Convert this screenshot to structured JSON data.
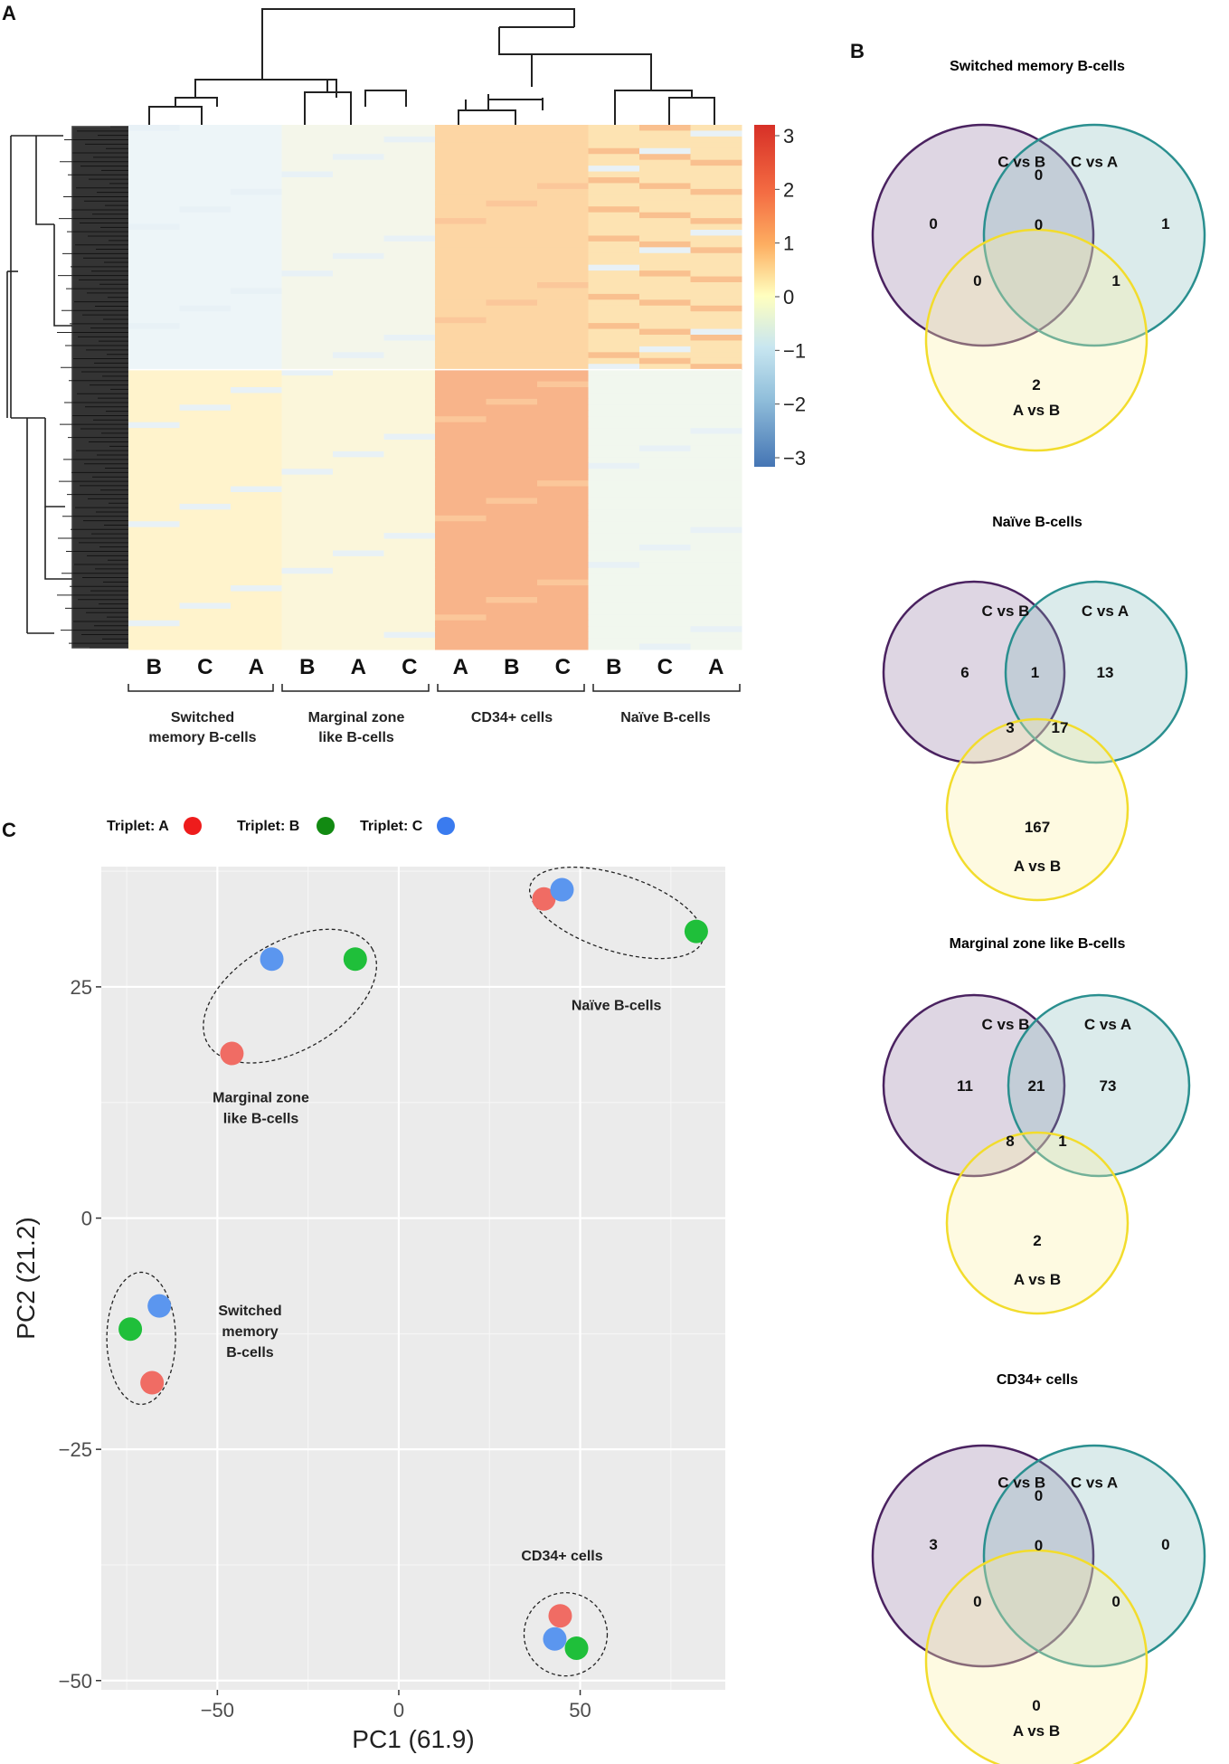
{
  "panels": {
    "a": "A",
    "b": "B",
    "c": "C"
  },
  "heatmap": {
    "legend_ticks": [
      "3",
      "2",
      "1",
      "0",
      "−1",
      "−2",
      "−3"
    ],
    "legend_values": [
      3,
      2,
      1,
      0,
      -1,
      -2,
      -3
    ],
    "column_labels": [
      "B",
      "C",
      "A",
      "B",
      "A",
      "C",
      "A",
      "B",
      "C",
      "B",
      "C",
      "A"
    ],
    "group_labels": [
      [
        "Switched",
        "memory B-cells"
      ],
      [
        "Marginal zone",
        "like B-cells"
      ],
      [
        "CD34+ cells"
      ],
      [
        "Naïve B-cells"
      ]
    ]
  },
  "venns": [
    {
      "title": "Switched memory B-cells",
      "labels": {
        "cb": "C vs B",
        "ca": "C vs A",
        "ab": "A vs B"
      },
      "counts": {
        "cb_only": "0",
        "ca_only": "1",
        "ab_only": "2",
        "cb_ca": "0",
        "cb_ab": "0",
        "ca_ab": "1",
        "all": "0"
      }
    },
    {
      "title": "Naïve B-cells",
      "labels": {
        "cb": "C vs B",
        "ca": "C vs A",
        "ab": "A vs B"
      },
      "counts": {
        "cb_only": "6",
        "ca_only": "13",
        "ab_only": "167",
        "cb_ca": "1",
        "cb_ab": "3",
        "ca_ab": "17"
      }
    },
    {
      "title": "Marginal zone like B-cells",
      "labels": {
        "cb": "C vs B",
        "ca": "C vs A",
        "ab": "A vs B"
      },
      "counts": {
        "cb_only": "11",
        "ca_only": "73",
        "ab_only": "2",
        "cb_ca": "21",
        "cb_ab": "8",
        "ca_ab": "1"
      }
    },
    {
      "title": "CD34+ cells",
      "labels": {
        "cb": "C vs B",
        "ca": "C vs A",
        "ab": "A vs B"
      },
      "counts": {
        "cb_only": "3",
        "ca_only": "0",
        "ab_only": "0",
        "cb_ca": "0",
        "cb_ab": "0",
        "ca_ab": "0",
        "all": "0"
      }
    }
  ],
  "colors": {
    "triplet_a": "#f06c64",
    "triplet_b": "#1fbf3a",
    "triplet_c": "#5b96ef",
    "legend_a": "#ee1c1c",
    "legend_b": "#128a12",
    "legend_c": "#3a7bef",
    "venn_cb": "#4a2260",
    "venn_ca": "#2a8f8f",
    "venn_ab": "#f2dc2c"
  },
  "chart_data": {
    "type": "scatter",
    "xlabel": "PC1 (61.9)",
    "ylabel": "PC2 (21.2)",
    "xlim": [
      -82,
      90
    ],
    "ylim": [
      -51,
      38
    ],
    "x_ticks": [
      -50,
      0,
      50
    ],
    "y_ticks": [
      25,
      0,
      -25,
      -50
    ],
    "x_tick_labels": [
      "−50",
      "0",
      "50"
    ],
    "y_tick_labels": [
      "25",
      "0",
      "−25",
      "−50"
    ],
    "legend": [
      {
        "name": "Triplet: A"
      },
      {
        "name": "Triplet: B"
      },
      {
        "name": "Triplet: C"
      }
    ],
    "series": [
      {
        "name": "Triplet: A",
        "points": [
          {
            "group": "Naive B-cells",
            "x": 40,
            "y": 34.5
          },
          {
            "group": "Marginal zone like B-cells",
            "x": -46,
            "y": 17.8
          },
          {
            "group": "Switched memory B-cells",
            "x": -68,
            "y": -17.8
          },
          {
            "group": "CD34+ cells",
            "x": 44.5,
            "y": -43
          }
        ]
      },
      {
        "name": "Triplet: B",
        "points": [
          {
            "group": "Naive B-cells",
            "x": 82,
            "y": 31
          },
          {
            "group": "Marginal zone like B-cells",
            "x": -12,
            "y": 28
          },
          {
            "group": "Switched memory B-cells",
            "x": -74,
            "y": -12
          },
          {
            "group": "CD34+ cells",
            "x": 49,
            "y": -46.5
          }
        ]
      },
      {
        "name": "Triplet: C",
        "points": [
          {
            "group": "Naive B-cells",
            "x": 45,
            "y": 35.5
          },
          {
            "group": "Marginal zone like B-cells",
            "x": -35,
            "y": 28
          },
          {
            "group": "Switched memory B-cells",
            "x": -66,
            "y": -9.5
          },
          {
            "group": "CD34+ cells",
            "x": 43,
            "y": -45.5
          }
        ]
      }
    ],
    "cluster_labels": {
      "naive": [
        "Naïve B-cells"
      ],
      "marginal": [
        "Marginal zone",
        "like B-cells"
      ],
      "switched": [
        "Switched",
        "memory",
        "B-cells"
      ],
      "cd34": [
        "CD34+ cells"
      ]
    }
  }
}
